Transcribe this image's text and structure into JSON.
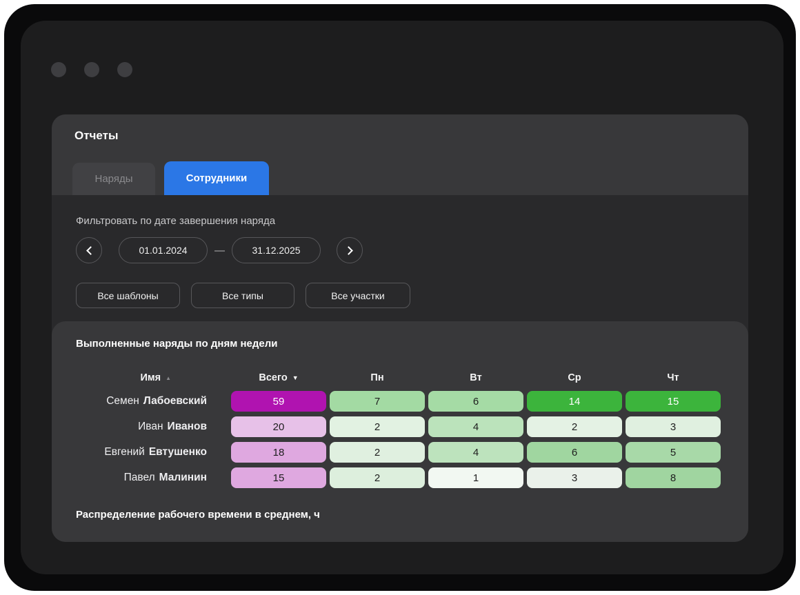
{
  "colors": {
    "accent": "#2b77e6"
  },
  "header": {
    "title": "Отчеты"
  },
  "tabs": [
    {
      "label": "Наряды",
      "active": false
    },
    {
      "label": "Сотрудники",
      "active": true
    }
  ],
  "filters": {
    "date_label": "Фильтровать по дате завершения наряда",
    "date_from": "01.01.2024",
    "date_separator": "—",
    "date_to": "31.12.2025",
    "buttons": [
      "Все шаблоны",
      "Все типы",
      "Все участки"
    ]
  },
  "icons": {
    "sort_asc": "▲",
    "sort_desc": "▼"
  },
  "report": {
    "title": "Выполненные наряды по дням недели",
    "footer_title": "Распределение рабочего времени в среднем, ч",
    "columns": [
      {
        "label": "Имя",
        "sort": "asc"
      },
      {
        "label": "Всего",
        "sort": "desc"
      },
      {
        "label": "Пн"
      },
      {
        "label": "Вт"
      },
      {
        "label": "Ср"
      },
      {
        "label": "Чт"
      }
    ],
    "rows": [
      {
        "first_name": "Семен",
        "last_name": "Лабоевский",
        "cells": [
          {
            "v": "59",
            "bg": "#b013b0",
            "fg": "#ffffff"
          },
          {
            "v": "7",
            "bg": "#a3daa3",
            "fg": "#1e1e1e"
          },
          {
            "v": "6",
            "bg": "#a5dba5",
            "fg": "#1e1e1e"
          },
          {
            "v": "14",
            "bg": "#3cb43c",
            "fg": "#ffffff"
          },
          {
            "v": "15",
            "bg": "#3cb43c",
            "fg": "#ffffff"
          }
        ]
      },
      {
        "first_name": "Иван",
        "last_name": "Иванов",
        "cells": [
          {
            "v": "20",
            "bg": "#e7c1e8",
            "fg": "#1e1e1e"
          },
          {
            "v": "2",
            "bg": "#e2f2e2",
            "fg": "#1e1e1e"
          },
          {
            "v": "4",
            "bg": "#bbe3bb",
            "fg": "#1e1e1e"
          },
          {
            "v": "2",
            "bg": "#e4f2e4",
            "fg": "#1e1e1e"
          },
          {
            "v": "3",
            "bg": "#e0f0e0",
            "fg": "#1e1e1e"
          }
        ]
      },
      {
        "first_name": "Евгений",
        "last_name": "Евтушенко",
        "cells": [
          {
            "v": "18",
            "bg": "#dfa8e0",
            "fg": "#1e1e1e"
          },
          {
            "v": "2",
            "bg": "#e0f0e0",
            "fg": "#1e1e1e"
          },
          {
            "v": "4",
            "bg": "#bde3bd",
            "fg": "#1e1e1e"
          },
          {
            "v": "6",
            "bg": "#a0d6a0",
            "fg": "#1e1e1e"
          },
          {
            "v": "5",
            "bg": "#a8d9a8",
            "fg": "#1e1e1e"
          }
        ]
      },
      {
        "first_name": "Павел",
        "last_name": "Малинин",
        "cells": [
          {
            "v": "15",
            "bg": "#dfa8e0",
            "fg": "#1e1e1e"
          },
          {
            "v": "2",
            "bg": "#ddefdd",
            "fg": "#1e1e1e"
          },
          {
            "v": "1",
            "bg": "#f2f8f2",
            "fg": "#1e1e1e"
          },
          {
            "v": "3",
            "bg": "#eaf1ea",
            "fg": "#1e1e1e"
          },
          {
            "v": "8",
            "bg": "#a0d5a0",
            "fg": "#1e1e1e"
          }
        ]
      }
    ]
  }
}
